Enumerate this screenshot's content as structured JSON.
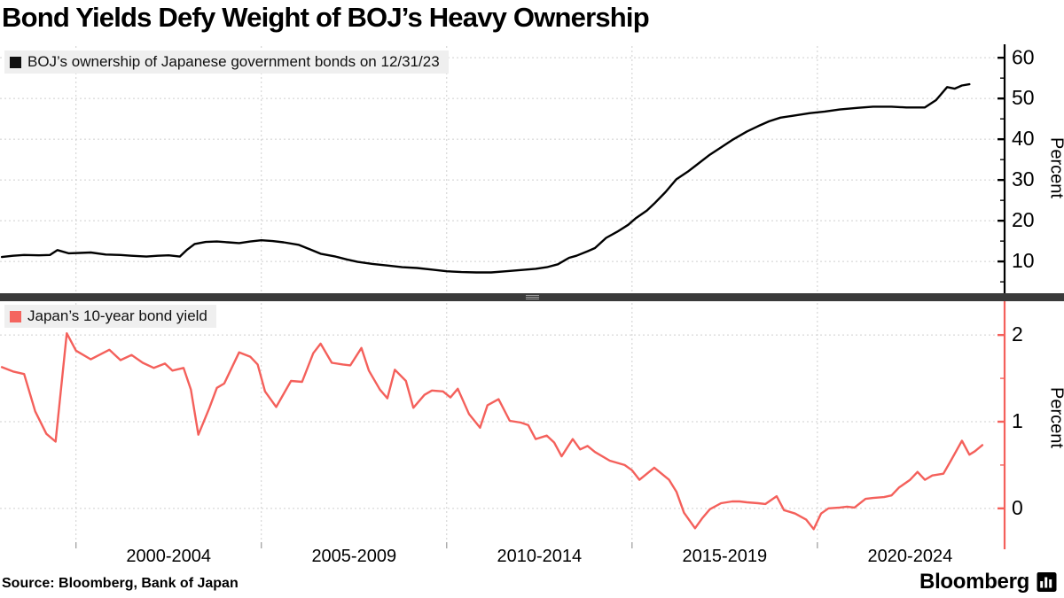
{
  "title": "Bond Yields Defy Weight of BOJ’s Heavy Ownership",
  "source": "Source:  Bloomberg, Bank of Japan",
  "brand": {
    "name": "Bloomberg",
    "icon": "bar-chart-bubble-icon"
  },
  "separator": {
    "style": "dark-divider-bar",
    "color": "#3a3a3a"
  },
  "x_axis": {
    "xlim": [
      1997.95,
      2025.05
    ],
    "grid_years": [
      2000,
      2005,
      2010,
      2015,
      2020
    ],
    "labels": [
      "2000-2004",
      "2005-2009",
      "2010-2014",
      "2015-2019",
      "2020-2024"
    ],
    "label_center_years": [
      2002.5,
      2007.5,
      2012.5,
      2017.5,
      2022.5
    ],
    "grid_on": true
  },
  "chart_data": [
    {
      "type": "line",
      "panel": "top",
      "legend": "BOJ’s ownership of Japanese government bonds on 12/31/23",
      "ylabel": "Percent",
      "color": "#000000",
      "axis_color": "#000000",
      "legend_swatch_color": "#111111",
      "ylim": [
        2.2,
        63.3
      ],
      "y_ticks": [
        10,
        20,
        30,
        40,
        50,
        60
      ],
      "y_minor_ticks": [
        5,
        15,
        25,
        35,
        45,
        55
      ],
      "legend_position": "top-left",
      "x": [
        1998.0,
        1998.3,
        1998.6,
        1999.0,
        1999.3,
        1999.5,
        1999.8,
        2000.1,
        2000.4,
        2000.8,
        2001.2,
        2001.5,
        2001.9,
        2002.2,
        2002.5,
        2002.8,
        2003.0,
        2003.2,
        2003.5,
        2003.8,
        2004.1,
        2004.4,
        2004.7,
        2005.0,
        2005.3,
        2005.6,
        2006.0,
        2006.3,
        2006.6,
        2007.0,
        2007.3,
        2007.6,
        2008.0,
        2008.4,
        2008.8,
        2009.2,
        2009.6,
        2010.0,
        2010.4,
        2010.8,
        2011.2,
        2011.6,
        2012.0,
        2012.4,
        2012.7,
        2013.0,
        2013.3,
        2013.5,
        2013.8,
        2014.0,
        2014.3,
        2014.6,
        2014.9,
        2015.1,
        2015.4,
        2015.6,
        2015.9,
        2016.2,
        2016.5,
        2016.7,
        2017.1,
        2017.4,
        2017.7,
        2018.1,
        2018.4,
        2018.7,
        2019.0,
        2019.3,
        2019.8,
        2020.2,
        2020.6,
        2021.1,
        2021.5,
        2022.0,
        2022.4,
        2022.9,
        2023.2,
        2023.5,
        2023.7,
        2023.9,
        2024.1
      ],
      "values": [
        11.1,
        11.4,
        11.6,
        11.5,
        11.6,
        12.8,
        12.0,
        12.1,
        12.2,
        11.7,
        11.6,
        11.4,
        11.2,
        11.4,
        11.5,
        11.2,
        12.9,
        14.3,
        14.8,
        14.9,
        14.7,
        14.5,
        14.9,
        15.2,
        15.0,
        14.7,
        14.1,
        13.0,
        11.9,
        11.2,
        10.5,
        9.9,
        9.4,
        9.0,
        8.6,
        8.4,
        8.0,
        7.6,
        7.4,
        7.3,
        7.3,
        7.6,
        7.9,
        8.2,
        8.6,
        9.3,
        10.9,
        11.4,
        12.5,
        13.3,
        15.8,
        17.3,
        19.0,
        20.6,
        22.5,
        24.2,
        27.0,
        30.2,
        32.0,
        33.4,
        36.2,
        38.0,
        39.8,
        41.9,
        43.2,
        44.4,
        45.3,
        45.7,
        46.4,
        46.8,
        47.3,
        47.7,
        48.0,
        48.0,
        47.8,
        47.8,
        49.6,
        52.8,
        52.4,
        53.2,
        53.5
      ]
    },
    {
      "type": "line",
      "panel": "bottom",
      "legend": "Japan’s 10-year bond yield",
      "ylabel": "Percent",
      "color": "#f4605b",
      "axis_color": "#f4605b",
      "legend_swatch_color": "#f4655f",
      "ylim": [
        -0.39,
        2.39
      ],
      "y_ticks": [
        0,
        1,
        2
      ],
      "y_minor_ticks": [
        0.5,
        1.5
      ],
      "legend_position": "top-left",
      "x": [
        1998.0,
        1998.3,
        1998.6,
        1998.9,
        1999.2,
        1999.45,
        1999.75,
        2000.0,
        2000.4,
        2000.9,
        2001.2,
        2001.5,
        2001.8,
        2002.1,
        2002.4,
        2002.6,
        2002.9,
        2003.1,
        2003.3,
        2003.6,
        2003.8,
        2004.0,
        2004.4,
        2004.7,
        2004.9,
        2005.1,
        2005.4,
        2005.8,
        2006.1,
        2006.4,
        2006.6,
        2006.9,
        2007.2,
        2007.4,
        2007.7,
        2007.9,
        2008.2,
        2008.4,
        2008.6,
        2008.9,
        2009.1,
        2009.4,
        2009.6,
        2009.9,
        2010.1,
        2010.3,
        2010.6,
        2010.9,
        2011.1,
        2011.4,
        2011.7,
        2012.0,
        2012.2,
        2012.4,
        2012.7,
        2012.9,
        2013.1,
        2013.4,
        2013.6,
        2013.8,
        2014.0,
        2014.4,
        2014.8,
        2015.0,
        2015.2,
        2015.6,
        2016.0,
        2016.2,
        2016.4,
        2016.7,
        2016.9,
        2017.1,
        2017.4,
        2017.7,
        2017.9,
        2018.1,
        2018.4,
        2018.6,
        2018.9,
        2019.1,
        2019.4,
        2019.7,
        2019.9,
        2020.1,
        2020.3,
        2020.6,
        2020.8,
        2021.0,
        2021.3,
        2021.5,
        2021.8,
        2022.0,
        2022.2,
        2022.5,
        2022.7,
        2022.9,
        2023.1,
        2023.4,
        2023.6,
        2023.9,
        2024.1,
        2024.25,
        2024.45
      ],
      "values": [
        1.63,
        1.58,
        1.55,
        1.12,
        0.86,
        0.77,
        2.02,
        1.82,
        1.72,
        1.83,
        1.71,
        1.77,
        1.68,
        1.62,
        1.67,
        1.59,
        1.62,
        1.37,
        0.85,
        1.16,
        1.39,
        1.44,
        1.8,
        1.75,
        1.66,
        1.35,
        1.17,
        1.47,
        1.46,
        1.79,
        1.9,
        1.68,
        1.66,
        1.65,
        1.85,
        1.59,
        1.37,
        1.27,
        1.6,
        1.47,
        1.16,
        1.31,
        1.36,
        1.35,
        1.28,
        1.38,
        1.09,
        0.93,
        1.19,
        1.26,
        1.01,
        0.99,
        0.96,
        0.8,
        0.84,
        0.76,
        0.6,
        0.8,
        0.68,
        0.72,
        0.65,
        0.55,
        0.5,
        0.44,
        0.33,
        0.47,
        0.33,
        0.19,
        -0.05,
        -0.23,
        -0.11,
        -0.01,
        0.06,
        0.08,
        0.08,
        0.07,
        0.06,
        0.05,
        0.14,
        -0.02,
        -0.06,
        -0.13,
        -0.24,
        -0.06,
        0.0,
        0.01,
        0.02,
        0.01,
        0.11,
        0.12,
        0.13,
        0.15,
        0.24,
        0.33,
        0.42,
        0.33,
        0.38,
        0.4,
        0.55,
        0.78,
        0.62,
        0.66,
        0.73
      ]
    }
  ],
  "style": {
    "gridline_color": "#cfcfcf",
    "legend_bg": "#efefef",
    "background": "#ffffff"
  }
}
